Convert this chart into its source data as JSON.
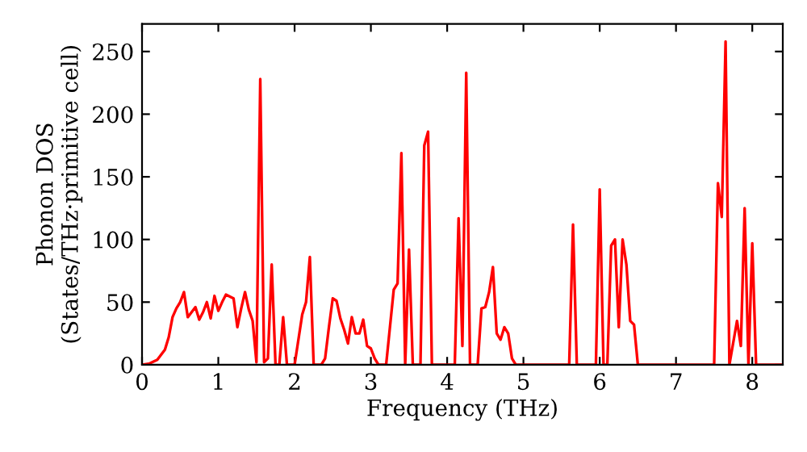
{
  "chart_data": {
    "type": "line",
    "xlabel": "Frequency (THz)",
    "ylabel": "Phonon DOS\n(States/THz·primitive cell)",
    "x": [
      0,
      0.1,
      0.2,
      0.3,
      0.35,
      0.4,
      0.45,
      0.5,
      0.55,
      0.6,
      0.65,
      0.7,
      0.75,
      0.8,
      0.85,
      0.9,
      0.95,
      1.0,
      1.05,
      1.1,
      1.2,
      1.25,
      1.3,
      1.35,
      1.4,
      1.45,
      1.5,
      1.55,
      1.6,
      1.65,
      1.7,
      1.75,
      1.8,
      1.85,
      1.9,
      2.0,
      2.1,
      2.15,
      2.2,
      2.25,
      2.35,
      2.4,
      2.45,
      2.5,
      2.55,
      2.6,
      2.65,
      2.7,
      2.75,
      2.8,
      2.85,
      2.9,
      2.95,
      3.0,
      3.05,
      3.1,
      3.2,
      3.3,
      3.35,
      3.4,
      3.45,
      3.5,
      3.55,
      3.65,
      3.7,
      3.75,
      3.8,
      4.1,
      4.15,
      4.2,
      4.25,
      4.3,
      4.4,
      4.45,
      4.5,
      4.55,
      4.6,
      4.65,
      4.7,
      4.75,
      4.8,
      4.85,
      4.9,
      5.6,
      5.65,
      5.7,
      5.95,
      6.0,
      6.05,
      6.1,
      6.15,
      6.2,
      6.25,
      6.3,
      6.35,
      6.4,
      6.45,
      6.5,
      7.5,
      7.55,
      7.6,
      7.65,
      7.7,
      7.8,
      7.85,
      7.9,
      7.95,
      8.0,
      8.05,
      8.4
    ],
    "series": [
      {
        "color": "#ff0000",
        "values": [
          0,
          1,
          4,
          12,
          22,
          38,
          45,
          50,
          58,
          38,
          42,
          46,
          36,
          42,
          50,
          37,
          55,
          43,
          50,
          56,
          53,
          30,
          45,
          58,
          44,
          35,
          2,
          228,
          2,
          5,
          80,
          0,
          0,
          38,
          0,
          0,
          40,
          50,
          86,
          0,
          0,
          5,
          30,
          53,
          51,
          37,
          28,
          17,
          38,
          25,
          25,
          36,
          15,
          13,
          5,
          0,
          0,
          60,
          65,
          169,
          0,
          92,
          0,
          0,
          175,
          186,
          0,
          0,
          117,
          15,
          233,
          0,
          0,
          45,
          46,
          58,
          78,
          25,
          20,
          30,
          25,
          5,
          0,
          0,
          112,
          0,
          0,
          140,
          0,
          0,
          95,
          100,
          30,
          100,
          80,
          35,
          32,
          0,
          0,
          145,
          118,
          258,
          0,
          35,
          15,
          125,
          0,
          97,
          0,
          0
        ]
      }
    ],
    "xlim": [
      0,
      8.4
    ],
    "ylim": [
      0,
      272
    ],
    "xticks": [
      0,
      1,
      2,
      3,
      4,
      5,
      6,
      7,
      8
    ],
    "yticks": [
      0,
      50,
      100,
      150,
      200,
      250
    ],
    "grid": false,
    "legend": false,
    "marker": "none",
    "line_style": "solid"
  }
}
